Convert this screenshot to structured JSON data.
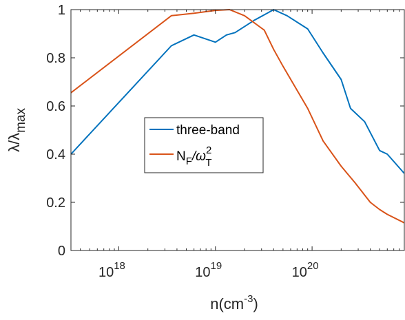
{
  "chart_data": {
    "type": "line",
    "xscale": "log",
    "xlim": [
      3.2e+17,
      9e+20
    ],
    "ylim": [
      0,
      1
    ],
    "grid": false,
    "legend_position": "center",
    "xticks": [
      1e+18,
      1e+19,
      1e+20
    ],
    "xtick_labels": [
      {
        "base": "10",
        "exp": "18"
      },
      {
        "base": "10",
        "exp": "19"
      },
      {
        "base": "10",
        "exp": "20"
      }
    ],
    "yticks": [
      0,
      0.2,
      0.4,
      0.6,
      0.8,
      1
    ],
    "ytick_labels": [
      "0",
      "0.2",
      "0.4",
      "0.6",
      "0.8",
      "1"
    ],
    "xlabel": {
      "main": "n(cm",
      "sup": "-3",
      "end": ")"
    },
    "ylabel": {
      "main": "λ/λ",
      "sub": "max"
    },
    "series": [
      {
        "name": "three-band",
        "color": "#0072BD",
        "x": [
          3.2e+17,
          3.5e+18,
          6e+18,
          1e+19,
          1.3e+19,
          1.6e+19,
          2.5e+19,
          4e+19,
          5.5e+19,
          9e+19,
          1.3e+20,
          2e+20,
          2.5e+20,
          3.5e+20,
          5e+20,
          6e+20,
          9e+20
        ],
        "y": [
          0.4,
          0.85,
          0.895,
          0.865,
          0.895,
          0.905,
          0.955,
          1.0,
          0.975,
          0.92,
          0.82,
          0.71,
          0.59,
          0.535,
          0.415,
          0.4,
          0.32
        ]
      },
      {
        "name_parts": {
          "base": "N",
          "sub1": "F",
          "mid": "/ω",
          "sup2": "2",
          "sub2": "T"
        },
        "color": "#D95319",
        "x": [
          3.2e+17,
          3.5e+18,
          6e+18,
          1e+19,
          1.4e+19,
          2e+19,
          3.2e+19,
          4e+19,
          5e+19,
          9e+19,
          1.3e+20,
          2e+20,
          2.8e+20,
          4e+20,
          5e+20,
          6e+20,
          9e+20
        ],
        "y": [
          0.655,
          0.975,
          0.985,
          0.997,
          1.0,
          0.975,
          0.915,
          0.835,
          0.765,
          0.59,
          0.455,
          0.35,
          0.28,
          0.2,
          0.17,
          0.15,
          0.115
        ]
      }
    ]
  }
}
